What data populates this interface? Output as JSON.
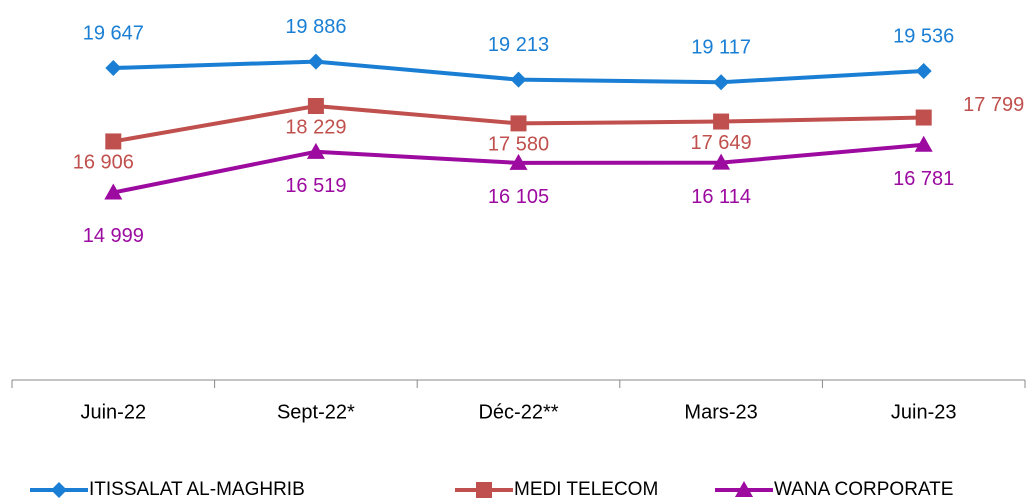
{
  "chart_data": {
    "type": "line",
    "categories": [
      "Juin-22",
      "Sept-22*",
      "Déc-22**",
      "Mars-23",
      "Juin-23"
    ],
    "series": [
      {
        "name": "ITISSALAT AL-MAGHRIB",
        "color": "#1a7fd4",
        "marker": "diamond",
        "values": [
          19647,
          19886,
          19213,
          19117,
          19536
        ],
        "value_labels": [
          "19 647",
          "19 886",
          "19 213",
          "19 117",
          "19 536"
        ]
      },
      {
        "name": "MEDI TELECOM",
        "color": "#c0504d",
        "marker": "square",
        "values": [
          16906,
          18229,
          17580,
          17649,
          17799
        ],
        "value_labels": [
          "16 906",
          "18 229",
          "17 580",
          "17 649",
          "17 799"
        ]
      },
      {
        "name": "WANA CORPORATE",
        "color": "#9c0aa0",
        "marker": "triangle",
        "values": [
          14999,
          16519,
          16105,
          16114,
          16781
        ],
        "value_labels": [
          "14 999",
          "16 519",
          "16 105",
          "16 114",
          "16 781"
        ]
      }
    ],
    "ylim": [
      8000,
      22000
    ],
    "grid": false,
    "legend": "bottom"
  }
}
